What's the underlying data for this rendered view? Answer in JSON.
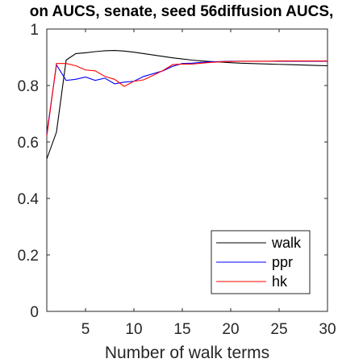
{
  "chart_data": {
    "type": "line",
    "title": "on AUCS, senate, seed 56diffusion AUCS,",
    "xlabel": "Number of walk terms",
    "ylabel": "",
    "xlim": [
      1,
      30
    ],
    "ylim": [
      0,
      1
    ],
    "xticks": [
      5,
      10,
      15,
      20,
      25,
      30
    ],
    "yticks": [
      0,
      0.2,
      0.4,
      0.6,
      0.8,
      1
    ],
    "xtick_labels": [
      "5",
      "10",
      "15",
      "20",
      "25",
      "30"
    ],
    "ytick_labels": [
      "0",
      "0.2",
      "0.4",
      "0.6",
      "0.8",
      "1"
    ],
    "grid": false,
    "legend_position": "bottom-right",
    "x": [
      1,
      2,
      3,
      4,
      5,
      6,
      7,
      8,
      9,
      10,
      11,
      12,
      13,
      14,
      15,
      16,
      17,
      18,
      19,
      20,
      21,
      22,
      23,
      24,
      25,
      26,
      27,
      28,
      29,
      30
    ],
    "series": [
      {
        "name": "walk",
        "color": "#000000",
        "values": [
          0.54,
          0.635,
          0.89,
          0.913,
          0.916,
          0.92,
          0.923,
          0.924,
          0.922,
          0.918,
          0.913,
          0.908,
          0.903,
          0.898,
          0.894,
          0.89,
          0.887,
          0.885,
          0.883,
          0.881,
          0.879,
          0.878,
          0.877,
          0.876,
          0.875,
          0.874,
          0.873,
          0.872,
          0.871,
          0.87
        ]
      },
      {
        "name": "ppr",
        "color": "#0000ff",
        "values": [
          0.63,
          0.873,
          0.818,
          0.822,
          0.83,
          0.818,
          0.826,
          0.806,
          0.812,
          0.815,
          0.832,
          0.842,
          0.852,
          0.868,
          0.878,
          0.879,
          0.882,
          0.884,
          0.885,
          0.886,
          0.886,
          0.886,
          0.886,
          0.886,
          0.886,
          0.886,
          0.886,
          0.886,
          0.886,
          0.886
        ]
      },
      {
        "name": "hk",
        "color": "#ff0000",
        "values": [
          0.62,
          0.878,
          0.878,
          0.87,
          0.855,
          0.852,
          0.832,
          0.822,
          0.797,
          0.815,
          0.82,
          0.836,
          0.853,
          0.874,
          0.876,
          0.876,
          0.879,
          0.882,
          0.884,
          0.885,
          0.886,
          0.886,
          0.886,
          0.886,
          0.887,
          0.887,
          0.887,
          0.887,
          0.887,
          0.887
        ]
      }
    ]
  }
}
